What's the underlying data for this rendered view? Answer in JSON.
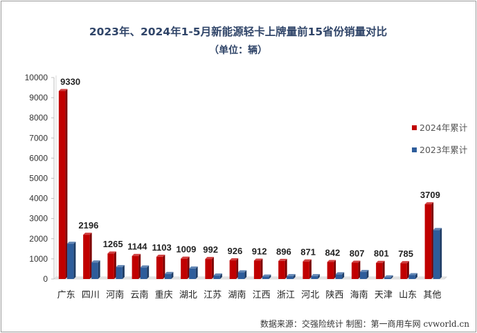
{
  "chart_data": {
    "type": "bar",
    "title": "2023年、2024年1-5月新能源轻卡上牌量前15省份销量对比",
    "subtitle": "（单位：辆）",
    "categories": [
      "广东",
      "四川",
      "河南",
      "云南",
      "重庆",
      "湖北",
      "江苏",
      "湖南",
      "江西",
      "浙江",
      "河北",
      "陕西",
      "海南",
      "天津",
      "山东",
      "其他"
    ],
    "series": [
      {
        "name": "2024年累计",
        "color": "#c00000",
        "values": [
          9330,
          2196,
          1265,
          1144,
          1103,
          1009,
          992,
          926,
          912,
          896,
          871,
          842,
          807,
          801,
          785,
          3709
        ]
      },
      {
        "name": "2023年累计",
        "color": "#2e5d9b",
        "values": [
          1750,
          820,
          590,
          570,
          250,
          520,
          170,
          330,
          120,
          140,
          140,
          230,
          350,
          80,
          190,
          2430
        ]
      }
    ],
    "data_labels_series": "2024年累计",
    "ylim": [
      0,
      10000
    ],
    "yticks": [
      0,
      1000,
      2000,
      3000,
      4000,
      5000,
      6000,
      7000,
      8000,
      9000,
      10000
    ],
    "grid": false,
    "legend_position": "right",
    "source_note": "数据来源：交强险统计  制图：第一商用车网 cvworld.cn"
  }
}
